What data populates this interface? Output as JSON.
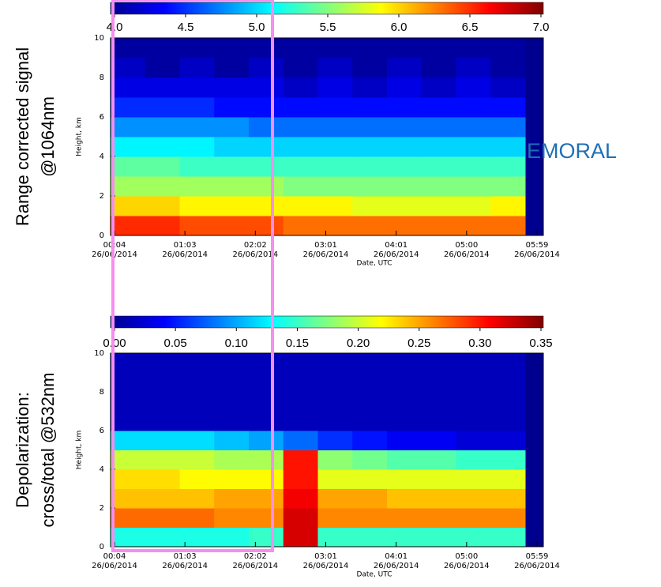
{
  "chart_data": [
    {
      "type": "heatmap",
      "side_label": [
        "Range corrected signal",
        "@1064nm"
      ],
      "ylabel": "Height, km",
      "xlabel": "Date, UTC",
      "annotation": "EMORAL",
      "xtick_labels": [
        [
          "00:04",
          "26/06/2014"
        ],
        [
          "01:03",
          "26/06/2014"
        ],
        [
          "02:02",
          "26/06/2014"
        ],
        [
          "03:01",
          "26/06/2014"
        ],
        [
          "04:01",
          "26/06/2014"
        ],
        [
          "05:00",
          "26/06/2014"
        ],
        [
          "05:59",
          "26/06/2014"
        ]
      ],
      "ylim": [
        0,
        10
      ],
      "yticks": [
        0,
        2,
        4,
        6,
        8,
        10
      ],
      "y_bins": [
        0,
        1,
        2,
        3,
        4,
        5,
        6,
        7,
        8,
        9,
        10
      ],
      "colorbar": {
        "lim": [
          4,
          7
        ],
        "ticks": [
          {
            "value": 4,
            "label": "4.0"
          },
          4.5,
          {
            "value": 5,
            "label": "5.0"
          },
          5.5,
          {
            "value": 6,
            "label": "6.0"
          },
          6.5,
          {
            "value": 7,
            "label": "7.0"
          }
        ]
      },
      "values": [
        [
          6.5,
          6.5,
          6.4,
          6.4,
          6.4,
          6.3,
          6.3,
          6.3,
          6.3,
          6.3,
          6.3,
          6.3
        ],
        [
          6.0,
          6.0,
          5.9,
          5.9,
          5.9,
          5.9,
          5.9,
          5.8,
          5.8,
          5.8,
          5.8,
          5.9
        ],
        [
          5.6,
          5.6,
          5.6,
          5.6,
          5.6,
          5.5,
          5.5,
          5.5,
          5.5,
          5.5,
          5.5,
          5.5
        ],
        [
          5.4,
          5.4,
          5.3,
          5.3,
          5.3,
          5.3,
          5.3,
          5.3,
          5.3,
          5.3,
          5.3,
          5.3
        ],
        [
          5.1,
          5.1,
          5.1,
          5.0,
          5.0,
          5.0,
          5.0,
          5.0,
          5.0,
          5.0,
          5.0,
          5.0
        ],
        [
          4.8,
          4.8,
          4.8,
          4.8,
          4.7,
          4.7,
          4.7,
          4.7,
          4.7,
          4.7,
          4.7,
          4.7
        ],
        [
          4.5,
          4.5,
          4.5,
          4.4,
          4.4,
          4.4,
          4.4,
          4.4,
          4.4,
          4.4,
          4.4,
          4.4
        ],
        [
          4.3,
          4.3,
          4.3,
          4.3,
          4.3,
          4.2,
          4.3,
          4.2,
          4.3,
          4.2,
          4.3,
          4.2
        ],
        [
          4.2,
          4.1,
          4.2,
          4.1,
          4.2,
          4.1,
          4.2,
          4.1,
          4.2,
          4.1,
          4.2,
          4.1
        ],
        [
          4.1,
          4.1,
          4.1,
          4.1,
          4.1,
          4.1,
          4.1,
          4.1,
          4.1,
          4.1,
          4.1,
          4.1
        ]
      ]
    },
    {
      "type": "heatmap",
      "side_label": [
        "Depolarization:",
        "cross/total @532nm"
      ],
      "ylabel": "Height, km",
      "xlabel": "Date, UTC",
      "xtick_labels": [
        [
          "00:04",
          "26/06/2014"
        ],
        [
          "01:03",
          "26/06/2014"
        ],
        [
          "02:02",
          "26/06/2014"
        ],
        [
          "03:01",
          "26/06/2014"
        ],
        [
          "04:01",
          "26/06/2014"
        ],
        [
          "05:00",
          "26/06/2014"
        ],
        [
          "05:59",
          "26/06/2014"
        ]
      ],
      "ylim": [
        0,
        10
      ],
      "yticks": [
        0,
        2,
        4,
        6,
        8,
        10
      ],
      "y_bins": [
        0,
        1,
        2,
        3,
        4,
        5,
        6,
        7,
        8,
        9,
        10
      ],
      "colorbar": {
        "lim": [
          0,
          0.35
        ],
        "ticks": [
          {
            "value": 0,
            "label": "0.00"
          },
          0.05,
          {
            "value": 0.1,
            "label": "0.10"
          },
          0.15,
          {
            "value": 0.2,
            "label": "0.20"
          },
          0.25,
          {
            "value": 0.3,
            "label": "0.30"
          },
          0.35
        ]
      },
      "values": [
        [
          0.14,
          0.14,
          0.14,
          0.14,
          0.15,
          0.32,
          0.15,
          0.15,
          0.15,
          0.15,
          0.15,
          0.15
        ],
        [
          0.27,
          0.27,
          0.27,
          0.26,
          0.26,
          0.32,
          0.26,
          0.26,
          0.26,
          0.26,
          0.26,
          0.26
        ],
        [
          0.24,
          0.24,
          0.24,
          0.25,
          0.25,
          0.31,
          0.25,
          0.25,
          0.24,
          0.24,
          0.24,
          0.24
        ],
        [
          0.23,
          0.23,
          0.22,
          0.22,
          0.22,
          0.3,
          0.21,
          0.21,
          0.21,
          0.21,
          0.21,
          0.21
        ],
        [
          0.2,
          0.2,
          0.2,
          0.19,
          0.19,
          0.3,
          0.18,
          0.17,
          0.16,
          0.16,
          0.15,
          0.15
        ],
        [
          0.12,
          0.12,
          0.12,
          0.11,
          0.1,
          0.08,
          0.06,
          0.05,
          0.04,
          0.04,
          0.03,
          0.03
        ],
        [
          0.02,
          0.02,
          0.02,
          0.02,
          0.02,
          0.02,
          0.02,
          0.02,
          0.02,
          0.02,
          0.02,
          0.02
        ],
        [
          0.02,
          0.02,
          0.02,
          0.02,
          0.02,
          0.02,
          0.02,
          0.02,
          0.02,
          0.02,
          0.02,
          0.02
        ],
        [
          0.02,
          0.02,
          0.02,
          0.02,
          0.02,
          0.02,
          0.02,
          0.02,
          0.02,
          0.02,
          0.02,
          0.02
        ],
        [
          0.02,
          0.02,
          0.02,
          0.02,
          0.02,
          0.02,
          0.02,
          0.02,
          0.02,
          0.02,
          0.02,
          0.02
        ]
      ]
    }
  ]
}
